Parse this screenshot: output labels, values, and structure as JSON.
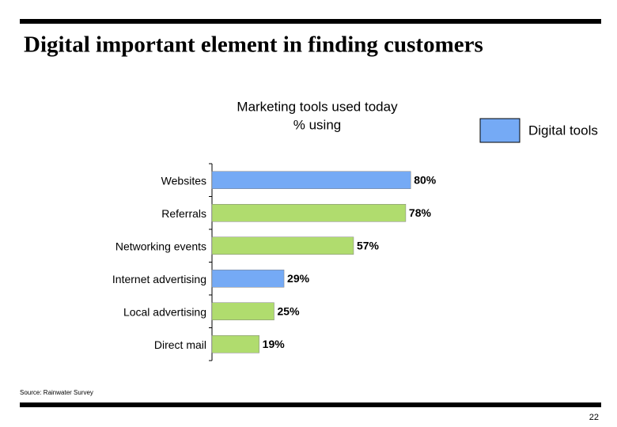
{
  "slide": {
    "title": "Digital important element in finding customers",
    "source": "Source: Rainwater Survey",
    "page_number": "22"
  },
  "chart_data": {
    "type": "bar",
    "orientation": "horizontal",
    "title": "Marketing tools used today",
    "subtitle": "% using",
    "categories": [
      "Websites",
      "Referrals",
      "Networking events",
      "Internet advertising",
      "Local advertising",
      "Direct mail"
    ],
    "values": [
      80,
      78,
      57,
      29,
      25,
      19
    ],
    "value_labels": [
      "80%",
      "78%",
      "57%",
      "29%",
      "25%",
      "19%"
    ],
    "colors": [
      "#75aaf5",
      "#b0dc6e",
      "#b0dc6e",
      "#75aaf5",
      "#b0dc6e",
      "#b0dc6e"
    ],
    "legend": {
      "label": "Digital tools",
      "color": "#75aaf5",
      "position": "top-right"
    },
    "xlim": [
      0,
      100
    ]
  }
}
